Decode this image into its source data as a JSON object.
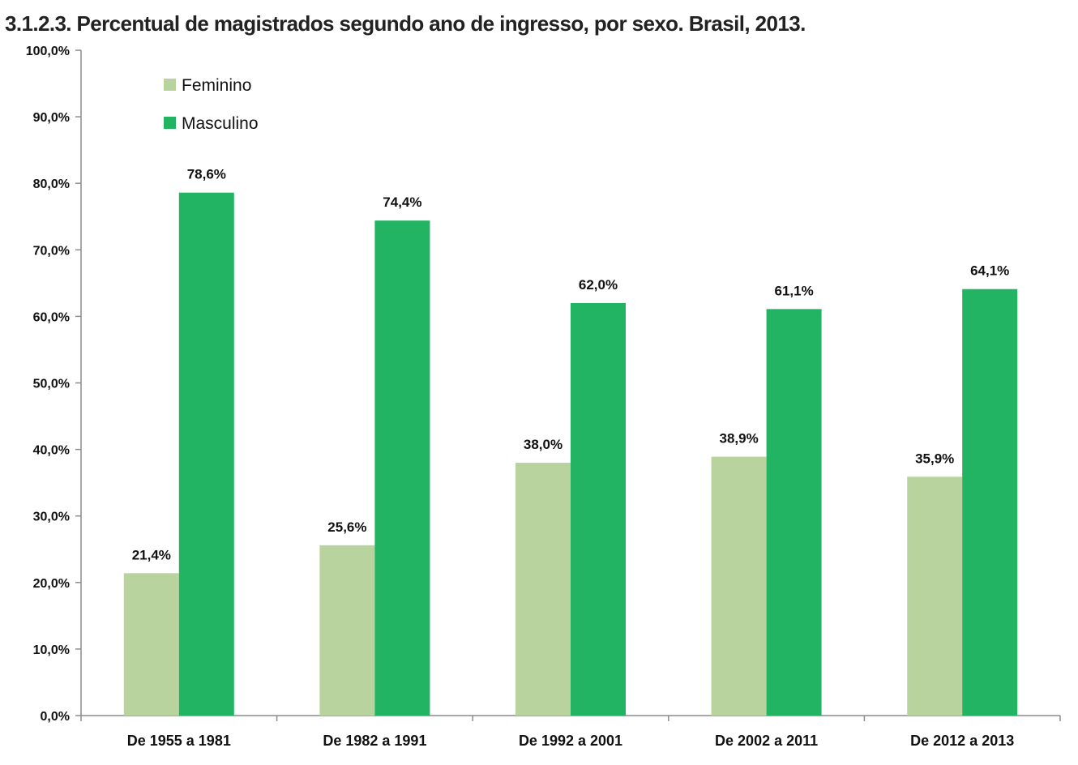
{
  "chart_data": {
    "type": "bar",
    "title": "3.1.2.3. Percentual de magistrados segundo ano de ingresso, por sexo. Brasil, 2013.",
    "categories": [
      "De 1955 a 1981",
      "De 1982 a 1991",
      "De 1992 a 2001",
      "De 2002 a 2011",
      "De 2012 a 2013"
    ],
    "series": [
      {
        "name": "Feminino",
        "color": "#b8d39e",
        "values": [
          21.4,
          25.6,
          38.0,
          38.9,
          35.9
        ],
        "labels": [
          "21,4%",
          "25,6%",
          "38,0%",
          "38,9%",
          "35,9%"
        ]
      },
      {
        "name": "Masculino",
        "color": "#22b363",
        "values": [
          78.6,
          74.4,
          62.0,
          61.1,
          64.1
        ],
        "labels": [
          "78,6%",
          "74,4%",
          "62,0%",
          "61,1%",
          "64,1%"
        ]
      }
    ],
    "ylim": [
      0,
      100
    ],
    "yticks": [
      0,
      10,
      20,
      30,
      40,
      50,
      60,
      70,
      80,
      90,
      100
    ],
    "ytick_labels": [
      "0,0%",
      "10,0%",
      "20,0%",
      "30,0%",
      "40,0%",
      "50,0%",
      "60,0%",
      "70,0%",
      "80,0%",
      "90,0%",
      "100,0%"
    ],
    "xlabel": "",
    "ylabel": "",
    "grid": false,
    "legend_position": "top-left"
  }
}
